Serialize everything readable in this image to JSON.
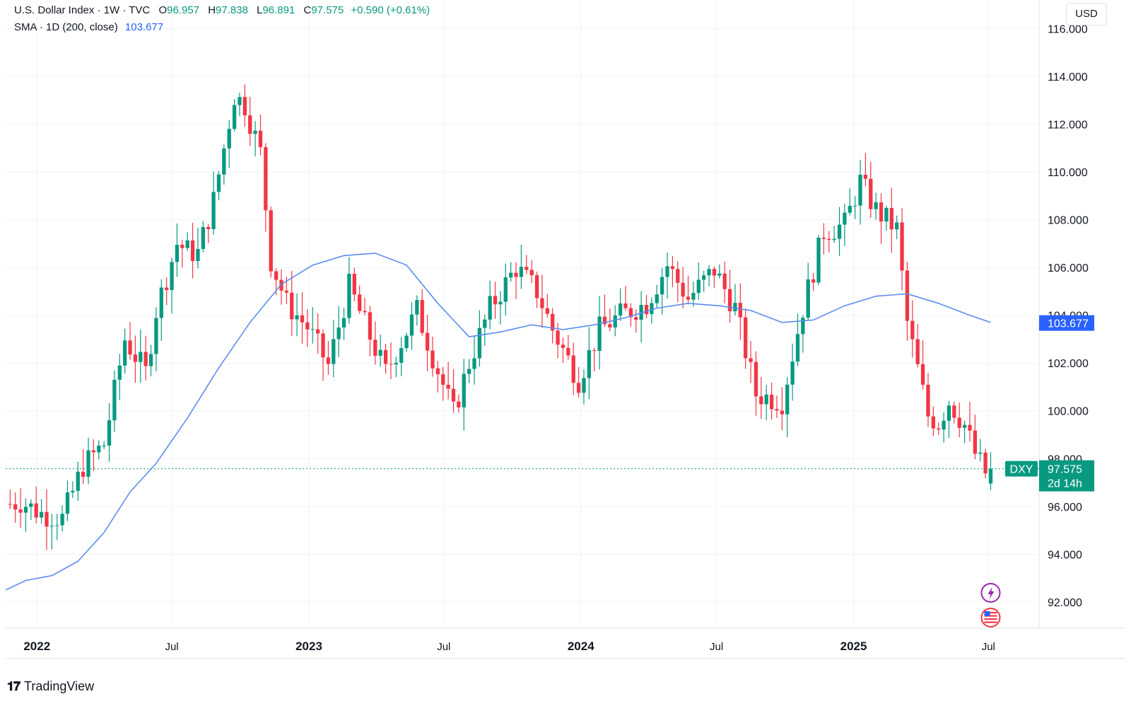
{
  "legend": {
    "title": "U.S. Dollar Index · 1W · TVC",
    "o_label": "O",
    "o_value": "96.957",
    "h_label": "H",
    "h_value": "97.838",
    "l_label": "L",
    "l_value": "96.891",
    "c_label": "C",
    "c_value": "97.575",
    "change": "+0.590 (+0.61%)",
    "sma_label": "SMA · 1D (200, close)",
    "sma_value": "103.677"
  },
  "currency_button": "USD",
  "price_tag": {
    "symbol": "DXY",
    "price": "97.575",
    "countdown": "2d 14h"
  },
  "sma_tag": "103.677",
  "footer_brand": "TradingView",
  "colors": {
    "up": "#089981",
    "down": "#f23645",
    "sma": "#5b8def",
    "sma_tag": "#2962ff"
  },
  "chart_data": {
    "type": "candlestick",
    "y_ticks": [
      "116.000",
      "114.000",
      "112.000",
      "110.000",
      "108.000",
      "106.000",
      "104.000",
      "102.000",
      "100.000",
      "98.000",
      "96.000",
      "94.000",
      "92.000"
    ],
    "ylim": [
      90.9,
      117.2
    ],
    "x_ticks": [
      {
        "label": "2022",
        "date": "2022-01-01",
        "bold": true
      },
      {
        "label": "Jul",
        "date": "2022-07-01",
        "bold": false
      },
      {
        "label": "2023",
        "date": "2023-01-01",
        "bold": true
      },
      {
        "label": "Jul",
        "date": "2023-07-01",
        "bold": false
      },
      {
        "label": "2024",
        "date": "2024-01-01",
        "bold": true
      },
      {
        "label": "Jul",
        "date": "2024-07-01",
        "bold": false
      },
      {
        "label": "2025",
        "date": "2025-01-01",
        "bold": true
      },
      {
        "label": "Jul",
        "date": "2025-07-01",
        "bold": false
      }
    ],
    "x_start": "2021-11-20",
    "x_end": "2025-09-07",
    "weekly_closes": [
      {
        "date": "2021-11-26",
        "close": 96.1
      },
      {
        "date": "2021-12-10",
        "close": 96.2
      },
      {
        "date": "2022-01-07",
        "close": 95.7
      },
      {
        "date": "2022-02-04",
        "close": 95.5
      },
      {
        "date": "2022-03-04",
        "close": 97.7
      },
      {
        "date": "2022-04-01",
        "close": 98.6
      },
      {
        "date": "2022-04-29",
        "close": 103.0
      },
      {
        "date": "2022-05-27",
        "close": 101.6
      },
      {
        "date": "2022-06-10",
        "close": 104.2
      },
      {
        "date": "2022-07-08",
        "close": 107.0
      },
      {
        "date": "2022-07-22",
        "close": 106.7
      },
      {
        "date": "2022-08-05",
        "close": 106.6
      },
      {
        "date": "2022-08-26",
        "close": 108.8
      },
      {
        "date": "2022-09-23",
        "close": 113.2
      },
      {
        "date": "2022-10-07",
        "close": 112.8
      },
      {
        "date": "2022-10-28",
        "close": 110.8
      },
      {
        "date": "2022-11-11",
        "close": 106.3
      },
      {
        "date": "2022-12-02",
        "close": 104.5
      },
      {
        "date": "2022-12-30",
        "close": 103.5
      },
      {
        "date": "2023-01-27",
        "close": 101.9
      },
      {
        "date": "2023-02-24",
        "close": 105.2
      },
      {
        "date": "2023-03-24",
        "close": 103.1
      },
      {
        "date": "2023-04-14",
        "close": 101.6
      },
      {
        "date": "2023-05-26",
        "close": 104.2
      },
      {
        "date": "2023-06-16",
        "close": 102.3
      },
      {
        "date": "2023-07-14",
        "close": 99.9
      },
      {
        "date": "2023-08-04",
        "close": 102.0
      },
      {
        "date": "2023-09-01",
        "close": 104.3
      },
      {
        "date": "2023-10-06",
        "close": 106.0
      },
      {
        "date": "2023-11-03",
        "close": 105.0
      },
      {
        "date": "2023-11-24",
        "close": 103.4
      },
      {
        "date": "2023-12-29",
        "close": 101.3
      },
      {
        "date": "2024-01-26",
        "close": 103.4
      },
      {
        "date": "2024-02-23",
        "close": 104.0
      },
      {
        "date": "2024-03-29",
        "close": 104.5
      },
      {
        "date": "2024-04-26",
        "close": 106.1
      },
      {
        "date": "2024-05-24",
        "close": 104.7
      },
      {
        "date": "2024-06-28",
        "close": 105.9
      },
      {
        "date": "2024-07-26",
        "close": 104.3
      },
      {
        "date": "2024-08-23",
        "close": 100.7
      },
      {
        "date": "2024-09-27",
        "close": 100.4
      },
      {
        "date": "2024-10-25",
        "close": 104.3
      },
      {
        "date": "2024-11-22",
        "close": 107.5
      },
      {
        "date": "2024-12-20",
        "close": 107.8
      },
      {
        "date": "2025-01-10",
        "close": 109.6
      },
      {
        "date": "2025-01-31",
        "close": 108.4
      },
      {
        "date": "2025-02-28",
        "close": 107.6
      },
      {
        "date": "2025-03-14",
        "close": 103.7
      },
      {
        "date": "2025-04-11",
        "close": 99.8
      },
      {
        "date": "2025-04-25",
        "close": 99.5
      },
      {
        "date": "2025-05-09",
        "close": 100.4
      },
      {
        "date": "2025-05-30",
        "close": 99.4
      },
      {
        "date": "2025-06-13",
        "close": 98.2
      },
      {
        "date": "2025-06-27",
        "close": 97.4
      },
      {
        "date": "2025-07-04",
        "close": 97.6
      }
    ],
    "sma_series": [
      {
        "date": "2021-11-20",
        "value": 92.5
      },
      {
        "date": "2021-12-17",
        "value": 92.9
      },
      {
        "date": "2022-01-21",
        "value": 93.1
      },
      {
        "date": "2022-02-25",
        "value": 93.7
      },
      {
        "date": "2022-04-01",
        "value": 94.9
      },
      {
        "date": "2022-05-06",
        "value": 96.6
      },
      {
        "date": "2022-06-10",
        "value": 97.8
      },
      {
        "date": "2022-07-22",
        "value": 99.7
      },
      {
        "date": "2022-09-02",
        "value": 101.8
      },
      {
        "date": "2022-10-14",
        "value": 103.7
      },
      {
        "date": "2022-11-25",
        "value": 105.3
      },
      {
        "date": "2023-01-06",
        "value": 106.1
      },
      {
        "date": "2023-02-17",
        "value": 106.5
      },
      {
        "date": "2023-03-31",
        "value": 106.6
      },
      {
        "date": "2023-05-12",
        "value": 106.1
      },
      {
        "date": "2023-06-23",
        "value": 104.5
      },
      {
        "date": "2023-08-04",
        "value": 103.1
      },
      {
        "date": "2023-09-15",
        "value": 103.3
      },
      {
        "date": "2023-10-27",
        "value": 103.6
      },
      {
        "date": "2023-12-08",
        "value": 103.4
      },
      {
        "date": "2024-01-19",
        "value": 103.6
      },
      {
        "date": "2024-03-01",
        "value": 103.9
      },
      {
        "date": "2024-04-12",
        "value": 104.3
      },
      {
        "date": "2024-05-24",
        "value": 104.5
      },
      {
        "date": "2024-07-05",
        "value": 104.4
      },
      {
        "date": "2024-08-16",
        "value": 104.2
      },
      {
        "date": "2024-09-27",
        "value": 103.7
      },
      {
        "date": "2024-11-08",
        "value": 103.8
      },
      {
        "date": "2024-12-20",
        "value": 104.4
      },
      {
        "date": "2025-01-31",
        "value": 104.8
      },
      {
        "date": "2025-03-14",
        "value": 104.9
      },
      {
        "date": "2025-04-25",
        "value": 104.5
      },
      {
        "date": "2025-06-06",
        "value": 104.0
      },
      {
        "date": "2025-07-04",
        "value": 103.7
      }
    ],
    "current_price": 97.575,
    "sma_value": 103.677
  }
}
